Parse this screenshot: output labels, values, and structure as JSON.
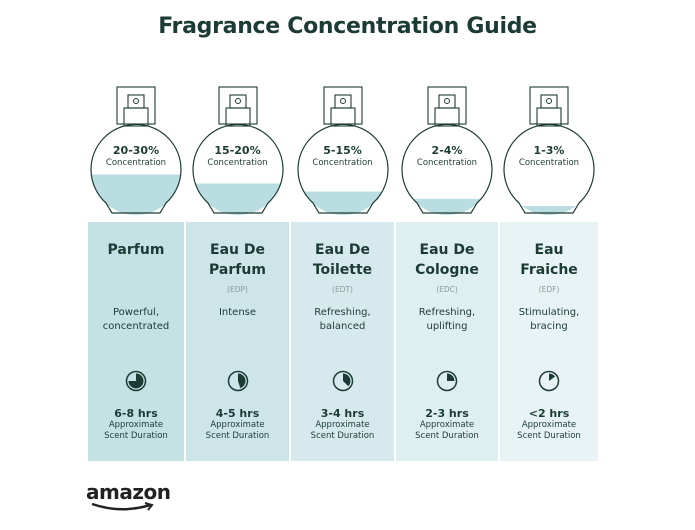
{
  "title": "Fragrance Concentration Guide",
  "colors": {
    "text": "#1d3b35",
    "liquid": "#b9dde0",
    "column_dark": "#c4e1e4",
    "column_light": "#e6f2f4"
  },
  "types": [
    {
      "concentration": "20-30%",
      "concentration_label": "Concentration",
      "fill_level": 0.45,
      "name_line1": "Parfum",
      "name_line2": "",
      "abbr": "",
      "desc_line1": "Powerful,",
      "desc_line2": "concentrated",
      "clock_fraction": 0.75,
      "duration": "6-8 hrs",
      "duration_label_1": "Approximate",
      "duration_label_2": "Scent Duration"
    },
    {
      "concentration": "15-20%",
      "concentration_label": "Concentration",
      "fill_level": 0.35,
      "name_line1": "Eau De",
      "name_line2": "Parfum",
      "abbr": "(EDP)",
      "desc_line1": "Intense",
      "desc_line2": "",
      "clock_fraction": 0.45,
      "duration": "4-5 hrs",
      "duration_label_1": "Approximate",
      "duration_label_2": "Scent Duration"
    },
    {
      "concentration": "5-15%",
      "concentration_label": "Concentration",
      "fill_level": 0.26,
      "name_line1": "Eau De",
      "name_line2": "Toilette",
      "abbr": "(EDT)",
      "desc_line1": "Refreshing,",
      "desc_line2": "balanced",
      "clock_fraction": 0.375,
      "duration": "3-4 hrs",
      "duration_label_1": "Approximate",
      "duration_label_2": "Scent Duration"
    },
    {
      "concentration": "2-4%",
      "concentration_label": "Concentration",
      "fill_level": 0.18,
      "name_line1": "Eau De",
      "name_line2": "Cologne",
      "abbr": "(EDC)",
      "desc_line1": "Refreshing,",
      "desc_line2": "uplifting",
      "clock_fraction": 0.25,
      "duration": "2-3 hrs",
      "duration_label_1": "Approximate",
      "duration_label_2": "Scent Duration"
    },
    {
      "concentration": "1-3%",
      "concentration_label": "Concentration",
      "fill_level": 0.1,
      "name_line1": "Eau",
      "name_line2": "Fraiche",
      "abbr": "(EDF)",
      "desc_line1": "Stimulating,",
      "desc_line2": "bracing",
      "clock_fraction": 0.15,
      "duration": "<2 hrs",
      "duration_label_1": "Approximate",
      "duration_label_2": "Scent Duration"
    }
  ],
  "logo": "amazon"
}
